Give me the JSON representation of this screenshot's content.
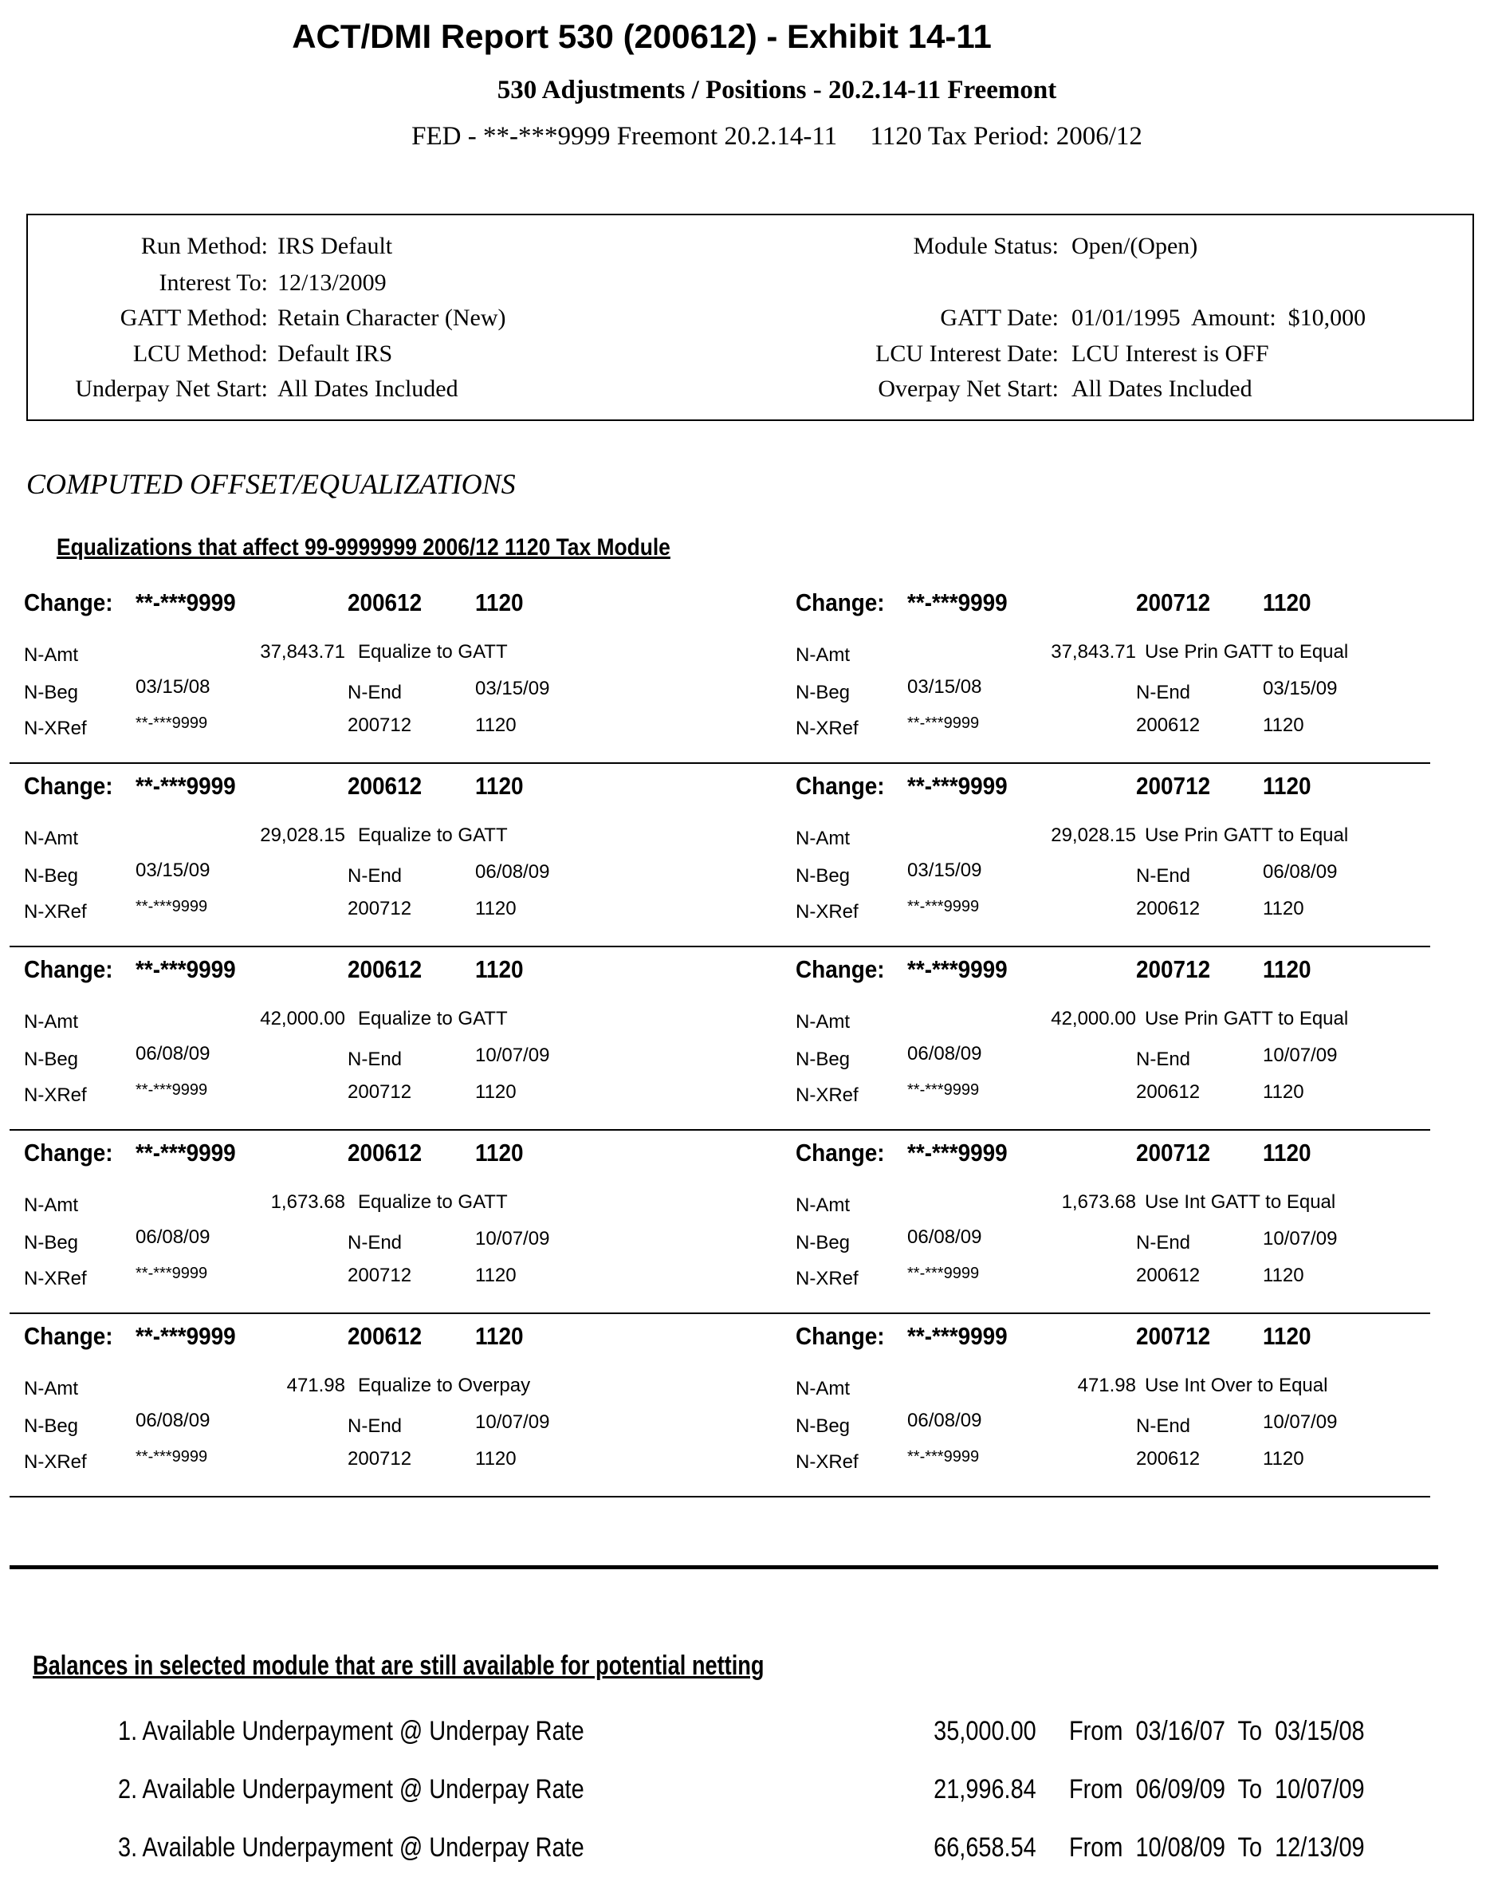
{
  "header": {
    "title": "ACT/DMI Report 530 (200612) - Exhibit 14-11",
    "subtitle": "530 Adjustments / Positions - 20.2.14-11 Freemont",
    "fed_line": "FED - **-***9999 Freemont 20.2.14-11     1120 Tax Period: 2006/12"
  },
  "settings": {
    "left": [
      {
        "label": "Run Method:",
        "value": "IRS Default"
      },
      {
        "label": "Interest To:",
        "value": "12/13/2009"
      },
      {
        "label": "GATT Method:",
        "value": "Retain Character (New)"
      },
      {
        "label": "LCU Method:",
        "value": "Default IRS"
      },
      {
        "label": "Underpay Net Start:",
        "value": "All Dates Included"
      }
    ],
    "right": [
      {
        "label": "Module Status:",
        "value": "Open/(Open)"
      },
      {
        "label": "",
        "value": ""
      },
      {
        "label": "GATT Date:",
        "value": "01/01/1995  Amount:  $10,000"
      },
      {
        "label": "LCU Interest Date:",
        "value": "LCU Interest is OFF"
      },
      {
        "label": "Overpay Net Start:",
        "value": "All Dates Included"
      }
    ]
  },
  "section_title": "COMPUTED OFFSET/EQUALIZATIONS",
  "equalizations_heading": "Equalizations that affect 99-9999999 2006/12 1120 Tax Module",
  "labels": {
    "change": "Change:",
    "amt": "N-Amt",
    "beg": "N-Beg",
    "end": "N-End",
    "xref": "N-XRef"
  },
  "blocks": [
    {
      "left": {
        "tin": "**-***9999",
        "period": "200612",
        "form": "1120",
        "amount": "37,843.71",
        "desc": "Equalize to GATT",
        "beg": "03/15/08",
        "end": "03/15/09",
        "xtin": "**-***9999",
        "xperiod": "200712",
        "xform": "1120"
      },
      "right": {
        "tin": "**-***9999",
        "period": "200712",
        "form": "1120",
        "amount": "37,843.71",
        "desc": "Use Prin GATT to Equal",
        "beg": "03/15/08",
        "end": "03/15/09",
        "xtin": "**-***9999",
        "xperiod": "200612",
        "xform": "1120"
      }
    },
    {
      "left": {
        "tin": "**-***9999",
        "period": "200612",
        "form": "1120",
        "amount": "29,028.15",
        "desc": "Equalize to GATT",
        "beg": "03/15/09",
        "end": "06/08/09",
        "xtin": "**-***9999",
        "xperiod": "200712",
        "xform": "1120"
      },
      "right": {
        "tin": "**-***9999",
        "period": "200712",
        "form": "1120",
        "amount": "29,028.15",
        "desc": "Use Prin GATT to Equal",
        "beg": "03/15/09",
        "end": "06/08/09",
        "xtin": "**-***9999",
        "xperiod": "200612",
        "xform": "1120"
      }
    },
    {
      "left": {
        "tin": "**-***9999",
        "period": "200612",
        "form": "1120",
        "amount": "42,000.00",
        "desc": "Equalize to GATT",
        "beg": "06/08/09",
        "end": "10/07/09",
        "xtin": "**-***9999",
        "xperiod": "200712",
        "xform": "1120"
      },
      "right": {
        "tin": "**-***9999",
        "period": "200712",
        "form": "1120",
        "amount": "42,000.00",
        "desc": "Use Prin GATT to Equal",
        "beg": "06/08/09",
        "end": "10/07/09",
        "xtin": "**-***9999",
        "xperiod": "200612",
        "xform": "1120"
      }
    },
    {
      "left": {
        "tin": "**-***9999",
        "period": "200612",
        "form": "1120",
        "amount": "1,673.68",
        "desc": "Equalize to GATT",
        "beg": "06/08/09",
        "end": "10/07/09",
        "xtin": "**-***9999",
        "xperiod": "200712",
        "xform": "1120"
      },
      "right": {
        "tin": "**-***9999",
        "period": "200712",
        "form": "1120",
        "amount": "1,673.68",
        "desc": "Use Int GATT to Equal",
        "beg": "06/08/09",
        "end": "10/07/09",
        "xtin": "**-***9999",
        "xperiod": "200612",
        "xform": "1120"
      }
    },
    {
      "left": {
        "tin": "**-***9999",
        "period": "200612",
        "form": "1120",
        "amount": "471.98",
        "desc": "Equalize to Overpay",
        "beg": "06/08/09",
        "end": "10/07/09",
        "xtin": "**-***9999",
        "xperiod": "200712",
        "xform": "1120"
      },
      "right": {
        "tin": "**-***9999",
        "period": "200712",
        "form": "1120",
        "amount": "471.98",
        "desc": "Use Int Over to Equal",
        "beg": "06/08/09",
        "end": "10/07/09",
        "xtin": "**-***9999",
        "xperiod": "200612",
        "xform": "1120"
      }
    }
  ],
  "balances": {
    "heading": "Balances in selected module that are still available for potential netting",
    "items": [
      {
        "label": "1. Available Underpayment @ Underpay Rate",
        "amount": "35,000.00",
        "range": "From  03/16/07  To  03/15/08"
      },
      {
        "label": "2. Available Underpayment @ Underpay Rate",
        "amount": "21,996.84",
        "range": "From  06/09/09  To  10/07/09"
      },
      {
        "label": "3. Available Underpayment @ Underpay Rate",
        "amount": "66,658.54",
        "range": "From  10/08/09  To  12/13/09"
      }
    ]
  }
}
